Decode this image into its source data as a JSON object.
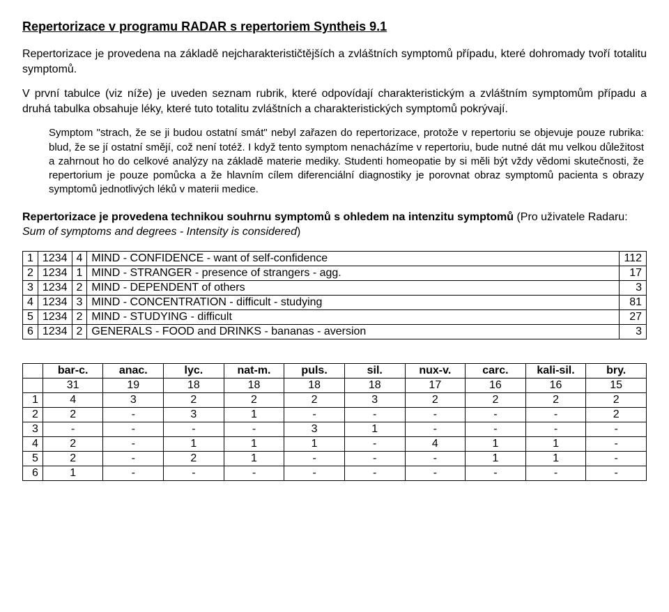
{
  "title": "Repertorizace v programu RADAR s repertoriem Syntheis 9.1",
  "intro1": "Repertorizace je provedena na základě nejcharakterističtějších a zvláštních symptomů případu, které dohromady tvoří totalitu symptomů.",
  "intro2": "V první tabulce (viz níže) je uveden seznam rubrik, které odpovídají charakteristickým a zvláštním symptomům případu a druhá tabulka obsahuje léky, které tuto totalitu zvláštních a charakteristických symptomů pokrývají.",
  "indented": "Symptom \"strach, že se ji budou ostatní smát\" nebyl zařazen do repertorizace, protože v repertoriu se objevuje pouze rubrika: blud, že se jí ostatní smějí, což není totéž. I když tento symptom nenacházíme v repertoriu, bude nutné dát mu velkou důležitost a zahrnout ho do celkové analýzy na základě materie mediky. Studenti homeopatie by si měli být vždy vědomi skutečnosti, že repertorium je pouze pomůcka a že hlavním cílem diferenciální diagnostiky je porovnat obraz symptomů pacienta s obrazy symptomů jednotlivých léků v materii medice.",
  "section_bold": "Repertorizace je provedena technikou souhrnu symptomů s ohledem na intenzitu symptomů",
  "section_rest_pre": " (Pro uživatele Radaru: ",
  "section_italic": "Sum of symptoms and degrees  -  Intensity is considered",
  "section_rest_post": ")",
  "rubrics": [
    {
      "n": "1",
      "code": "1234",
      "w": "4",
      "desc": "MIND - CONFIDENCE - want of self-confidence",
      "count": "112"
    },
    {
      "n": "2",
      "code": "1234",
      "w": "1",
      "desc": "MIND - STRANGER - presence of strangers - agg.",
      "count": "17"
    },
    {
      "n": "3",
      "code": "1234",
      "w": "2",
      "desc": "MIND - DEPENDENT of others",
      "count": "3"
    },
    {
      "n": "4",
      "code": "1234",
      "w": "3",
      "desc": "MIND - CONCENTRATION - difficult - studying",
      "count": "81"
    },
    {
      "n": "5",
      "code": "1234",
      "w": "2",
      "desc": "MIND - STUDYING - difficult",
      "count": "27"
    },
    {
      "n": "6",
      "code": "1234",
      "w": "2",
      "desc": "GENERALS - FOOD and DRINKS - bananas - aversion",
      "count": "3"
    }
  ],
  "remedy_headers": [
    "bar-c.",
    "anac.",
    "lyc.",
    "nat-m.",
    "puls.",
    "sil.",
    "nux-v.",
    "carc.",
    "kali-sil.",
    "bry."
  ],
  "remedy_totals": [
    "31",
    "19",
    "18",
    "18",
    "18",
    "18",
    "17",
    "16",
    "16",
    "15"
  ],
  "remedy_rows": [
    {
      "n": "1",
      "vals": [
        "4",
        "3",
        "2",
        "2",
        "2",
        "3",
        "2",
        "2",
        "2",
        "2"
      ]
    },
    {
      "n": "2",
      "vals": [
        "2",
        "-",
        "3",
        "1",
        "-",
        "-",
        "-",
        "-",
        "-",
        "2"
      ]
    },
    {
      "n": "3",
      "vals": [
        "-",
        "-",
        "-",
        "-",
        "3",
        "1",
        "-",
        "-",
        "-",
        "-"
      ]
    },
    {
      "n": "4",
      "vals": [
        "2",
        "-",
        "1",
        "1",
        "1",
        "-",
        "4",
        "1",
        "1",
        "-"
      ]
    },
    {
      "n": "5",
      "vals": [
        "2",
        "-",
        "2",
        "1",
        "-",
        "-",
        "-",
        "1",
        "1",
        "-"
      ]
    },
    {
      "n": "6",
      "vals": [
        "1",
        "-",
        "-",
        "-",
        "-",
        "-",
        "-",
        "-",
        "-",
        "-"
      ]
    }
  ]
}
